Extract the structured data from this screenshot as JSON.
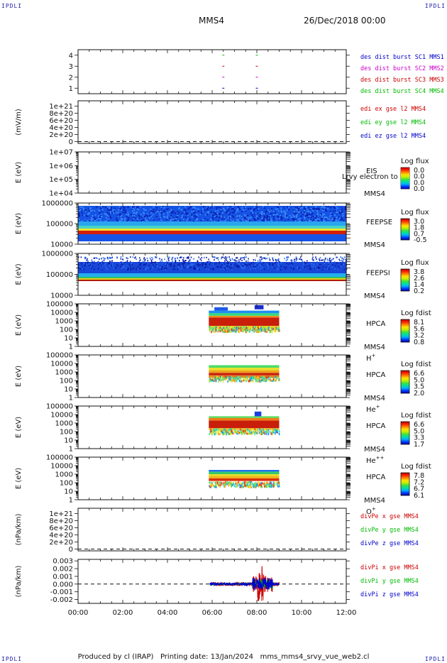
{
  "header": {
    "spacecraft": "MMS4",
    "date": "26/Dec/2018 00:00",
    "corner_mark": "IPDLI"
  },
  "footer": {
    "produced_by": "Produced by cl (IRAP)",
    "printing_date": "Printing date: 13/Jan/2024",
    "filename": "mms_mms4_srvy_vue_web2.cl"
  },
  "chart_data": [
    {
      "id": "p1",
      "type": "scatter",
      "title": "",
      "ylabel": "",
      "ylim": [
        0.5,
        4.5
      ],
      "yticks": [
        {
          "v": 1,
          "t": "1"
        },
        {
          "v": 2,
          "t": "2"
        },
        {
          "v": 3,
          "t": "3"
        },
        {
          "v": 4,
          "t": "4"
        }
      ],
      "x_range_hours": [
        0,
        12
      ],
      "legend": [
        {
          "text": "des dist burst SC1 MMS1",
          "color": "#0000cc"
        },
        {
          "text": "des dist burst SC2 MMS2",
          "color": "#cc00cc"
        },
        {
          "text": "des dist burst SC3 MMS3",
          "color": "#cc0000"
        },
        {
          "text": "des dist burst SC4 MMS4",
          "color": "#00bb00"
        }
      ],
      "series": [
        {
          "color": "#0000cc",
          "y": 1,
          "times": [
            6.5,
            8.0
          ]
        },
        {
          "color": "#cc00cc",
          "y": 2,
          "times": [
            6.5,
            8.0
          ]
        },
        {
          "color": "#cc0000",
          "y": 3,
          "times": [
            6.5,
            8.0
          ]
        },
        {
          "color": "#00bb00",
          "y": 4,
          "times": [
            6.5,
            8.0
          ]
        }
      ]
    },
    {
      "id": "p2",
      "type": "line",
      "ylabel": "(mV/m)",
      "ylim": [
        -0.5,
        11.5
      ],
      "yticks": [
        {
          "v": 0,
          "t": "0"
        },
        {
          "v": 2,
          "t": "2e+20"
        },
        {
          "v": 4,
          "t": "4e+20"
        },
        {
          "v": 6,
          "t": "6e+20"
        },
        {
          "v": 8,
          "t": "8e+20"
        },
        {
          "v": 10,
          "t": "1e+21"
        }
      ],
      "dashed_zero": true,
      "legend": [
        {
          "text": "edi ex gse l2 MMS4",
          "color": "#cc0000"
        },
        {
          "text": "edi ey gse l2 MMS4",
          "color": "#00bb00"
        },
        {
          "text": "edi ez gse l2 MMS4",
          "color": "#0000cc"
        }
      ]
    },
    {
      "id": "p3",
      "type": "heatmap",
      "ylabel": "E (eV)",
      "ylim": [
        4,
        7
      ],
      "yticks": [
        {
          "v": 4,
          "t": "1e+04"
        },
        {
          "v": 5,
          "t": "1e+05"
        },
        {
          "v": 6,
          "t": "1e+06"
        },
        {
          "v": 7,
          "t": "1e+07"
        }
      ],
      "instrument": "EIS",
      "species": "",
      "sc": "MMS4",
      "overlay_label": "Lrvy electron to",
      "cbar_title": "Log flux",
      "cbar_ticks": [
        "0.0",
        "0.0",
        "0.0",
        "0.0"
      ],
      "empty": true
    },
    {
      "id": "p4",
      "type": "heatmap",
      "ylabel": "E (eV)",
      "ylim": [
        4,
        6
      ],
      "yticks": [
        {
          "v": 4,
          "t": "10000"
        },
        {
          "v": 5,
          "t": "100000"
        },
        {
          "v": 6,
          "t": "1000000"
        }
      ],
      "instrument": "FEEPSE",
      "species": "",
      "sc": "MMS4",
      "cbar_title": "Log flux",
      "cbar_ticks": [
        "3.0",
        "1.8",
        "0.7",
        "-0.5"
      ],
      "time_range_hours": [
        0,
        12
      ]
    },
    {
      "id": "p5",
      "type": "heatmap",
      "ylabel": "E (eV)",
      "ylim": [
        4,
        6
      ],
      "yticks": [
        {
          "v": 4,
          "t": "10000"
        },
        {
          "v": 5,
          "t": "100000"
        },
        {
          "v": 6,
          "t": "1000000"
        }
      ],
      "instrument": "FEEPSI",
      "species": "",
      "sc": "MMS4",
      "cbar_title": "Log flux",
      "cbar_ticks": [
        "3.8",
        "2.6",
        "1.4",
        "0.2"
      ],
      "time_range_hours": [
        0,
        12
      ]
    },
    {
      "id": "p6",
      "type": "heatmap",
      "ylabel": "E (eV)",
      "ylim": [
        0,
        5
      ],
      "yticks": [
        {
          "v": 0,
          "t": "1"
        },
        {
          "v": 1,
          "t": "10"
        },
        {
          "v": 2,
          "t": "100"
        },
        {
          "v": 3,
          "t": "1000"
        },
        {
          "v": 4,
          "t": "10000"
        },
        {
          "v": 5,
          "t": "100000"
        }
      ],
      "instrument": "HPCA",
      "species": "H",
      "species_sup": "+",
      "sc": "MMS4",
      "cbar_title": "Log fdist",
      "cbar_ticks": [
        "8.1",
        "5.6",
        "3.2",
        "0.8"
      ],
      "time_range_hours": [
        5.85,
        9.0
      ]
    },
    {
      "id": "p7",
      "type": "heatmap",
      "ylabel": "E (eV)",
      "ylim": [
        0,
        5
      ],
      "yticks": [
        {
          "v": 0,
          "t": "1"
        },
        {
          "v": 1,
          "t": "10"
        },
        {
          "v": 2,
          "t": "100"
        },
        {
          "v": 3,
          "t": "1000"
        },
        {
          "v": 4,
          "t": "10000"
        },
        {
          "v": 5,
          "t": "100000"
        }
      ],
      "instrument": "HPCA",
      "species": "He",
      "species_sup": "+",
      "sc": "MMS4",
      "cbar_title": "Log fdist",
      "cbar_ticks": [
        "6.6",
        "5.0",
        "3.5",
        "2.0"
      ],
      "time_range_hours": [
        5.85,
        9.0
      ]
    },
    {
      "id": "p8",
      "type": "heatmap",
      "ylabel": "E (eV)",
      "ylim": [
        0,
        5
      ],
      "yticks": [
        {
          "v": 0,
          "t": "1"
        },
        {
          "v": 1,
          "t": "10"
        },
        {
          "v": 2,
          "t": "100"
        },
        {
          "v": 3,
          "t": "1000"
        },
        {
          "v": 4,
          "t": "10000"
        },
        {
          "v": 5,
          "t": "100000"
        }
      ],
      "instrument": "HPCA",
      "species": "He",
      "species_sup": "++",
      "sc": "MMS4",
      "cbar_title": "Log fdist",
      "cbar_ticks": [
        "6.6",
        "5.0",
        "3.3",
        "1.7"
      ],
      "time_range_hours": [
        5.85,
        9.0
      ]
    },
    {
      "id": "p9",
      "type": "heatmap",
      "ylabel": "E (eV)",
      "ylim": [
        0,
        5
      ],
      "yticks": [
        {
          "v": 0,
          "t": "1"
        },
        {
          "v": 1,
          "t": "10"
        },
        {
          "v": 2,
          "t": "100"
        },
        {
          "v": 3,
          "t": "1000"
        },
        {
          "v": 4,
          "t": "10000"
        },
        {
          "v": 5,
          "t": "100000"
        }
      ],
      "instrument": "HPCA",
      "species": "O",
      "species_sup": "+",
      "sc": "MMS4",
      "cbar_title": "Log fdist",
      "cbar_ticks": [
        "7.8",
        "7.2",
        "6.7",
        "6.1"
      ],
      "time_range_hours": [
        5.85,
        9.0
      ]
    },
    {
      "id": "p10",
      "type": "line",
      "ylabel": "(nPa/km)",
      "ylim": [
        -0.5,
        11.5
      ],
      "yticks": [
        {
          "v": 0,
          "t": "0"
        },
        {
          "v": 2,
          "t": "2e+20"
        },
        {
          "v": 4,
          "t": "4e+20"
        },
        {
          "v": 6,
          "t": "6e+20"
        },
        {
          "v": 8,
          "t": "8e+20"
        },
        {
          "v": 10,
          "t": "1e+21"
        }
      ],
      "dashed_zero": true,
      "legend": [
        {
          "text": "divPe x gse MMS4",
          "color": "#cc0000"
        },
        {
          "text": "divPe y gse MMS4",
          "color": "#00bb00"
        },
        {
          "text": "divPe z gse MMS4",
          "color": "#0000cc"
        }
      ]
    },
    {
      "id": "p11",
      "type": "line",
      "ylabel": "(nPa/km)",
      "ylim": [
        -0.0025,
        0.0032
      ],
      "yticks": [
        {
          "v": -0.002,
          "t": "-0.002"
        },
        {
          "v": -0.001,
          "t": "-0.001"
        },
        {
          "v": 0,
          "t": "0.000"
        },
        {
          "v": 0.001,
          "t": "0.001"
        },
        {
          "v": 0.002,
          "t": "0.002"
        },
        {
          "v": 0.003,
          "t": "0.003"
        }
      ],
      "dashed_zero": true,
      "time_range_hours": [
        5.9,
        9.0
      ],
      "legend": [
        {
          "text": "divPi x gse MMS4",
          "color": "#cc0000"
        },
        {
          "text": "divPi y gse MMS4",
          "color": "#00bb00"
        },
        {
          "text": "divPi z gse MMS4",
          "color": "#0000cc"
        }
      ]
    }
  ],
  "x_axis": {
    "range_hours": [
      0,
      12
    ],
    "ticks": [
      {
        "v": 0,
        "t": "00:00"
      },
      {
        "v": 2,
        "t": "02:00"
      },
      {
        "v": 4,
        "t": "04:00"
      },
      {
        "v": 6,
        "t": "06:00"
      },
      {
        "v": 8,
        "t": "08:00"
      },
      {
        "v": 10,
        "t": "10:00"
      },
      {
        "v": 12,
        "t": "12:00"
      }
    ]
  }
}
